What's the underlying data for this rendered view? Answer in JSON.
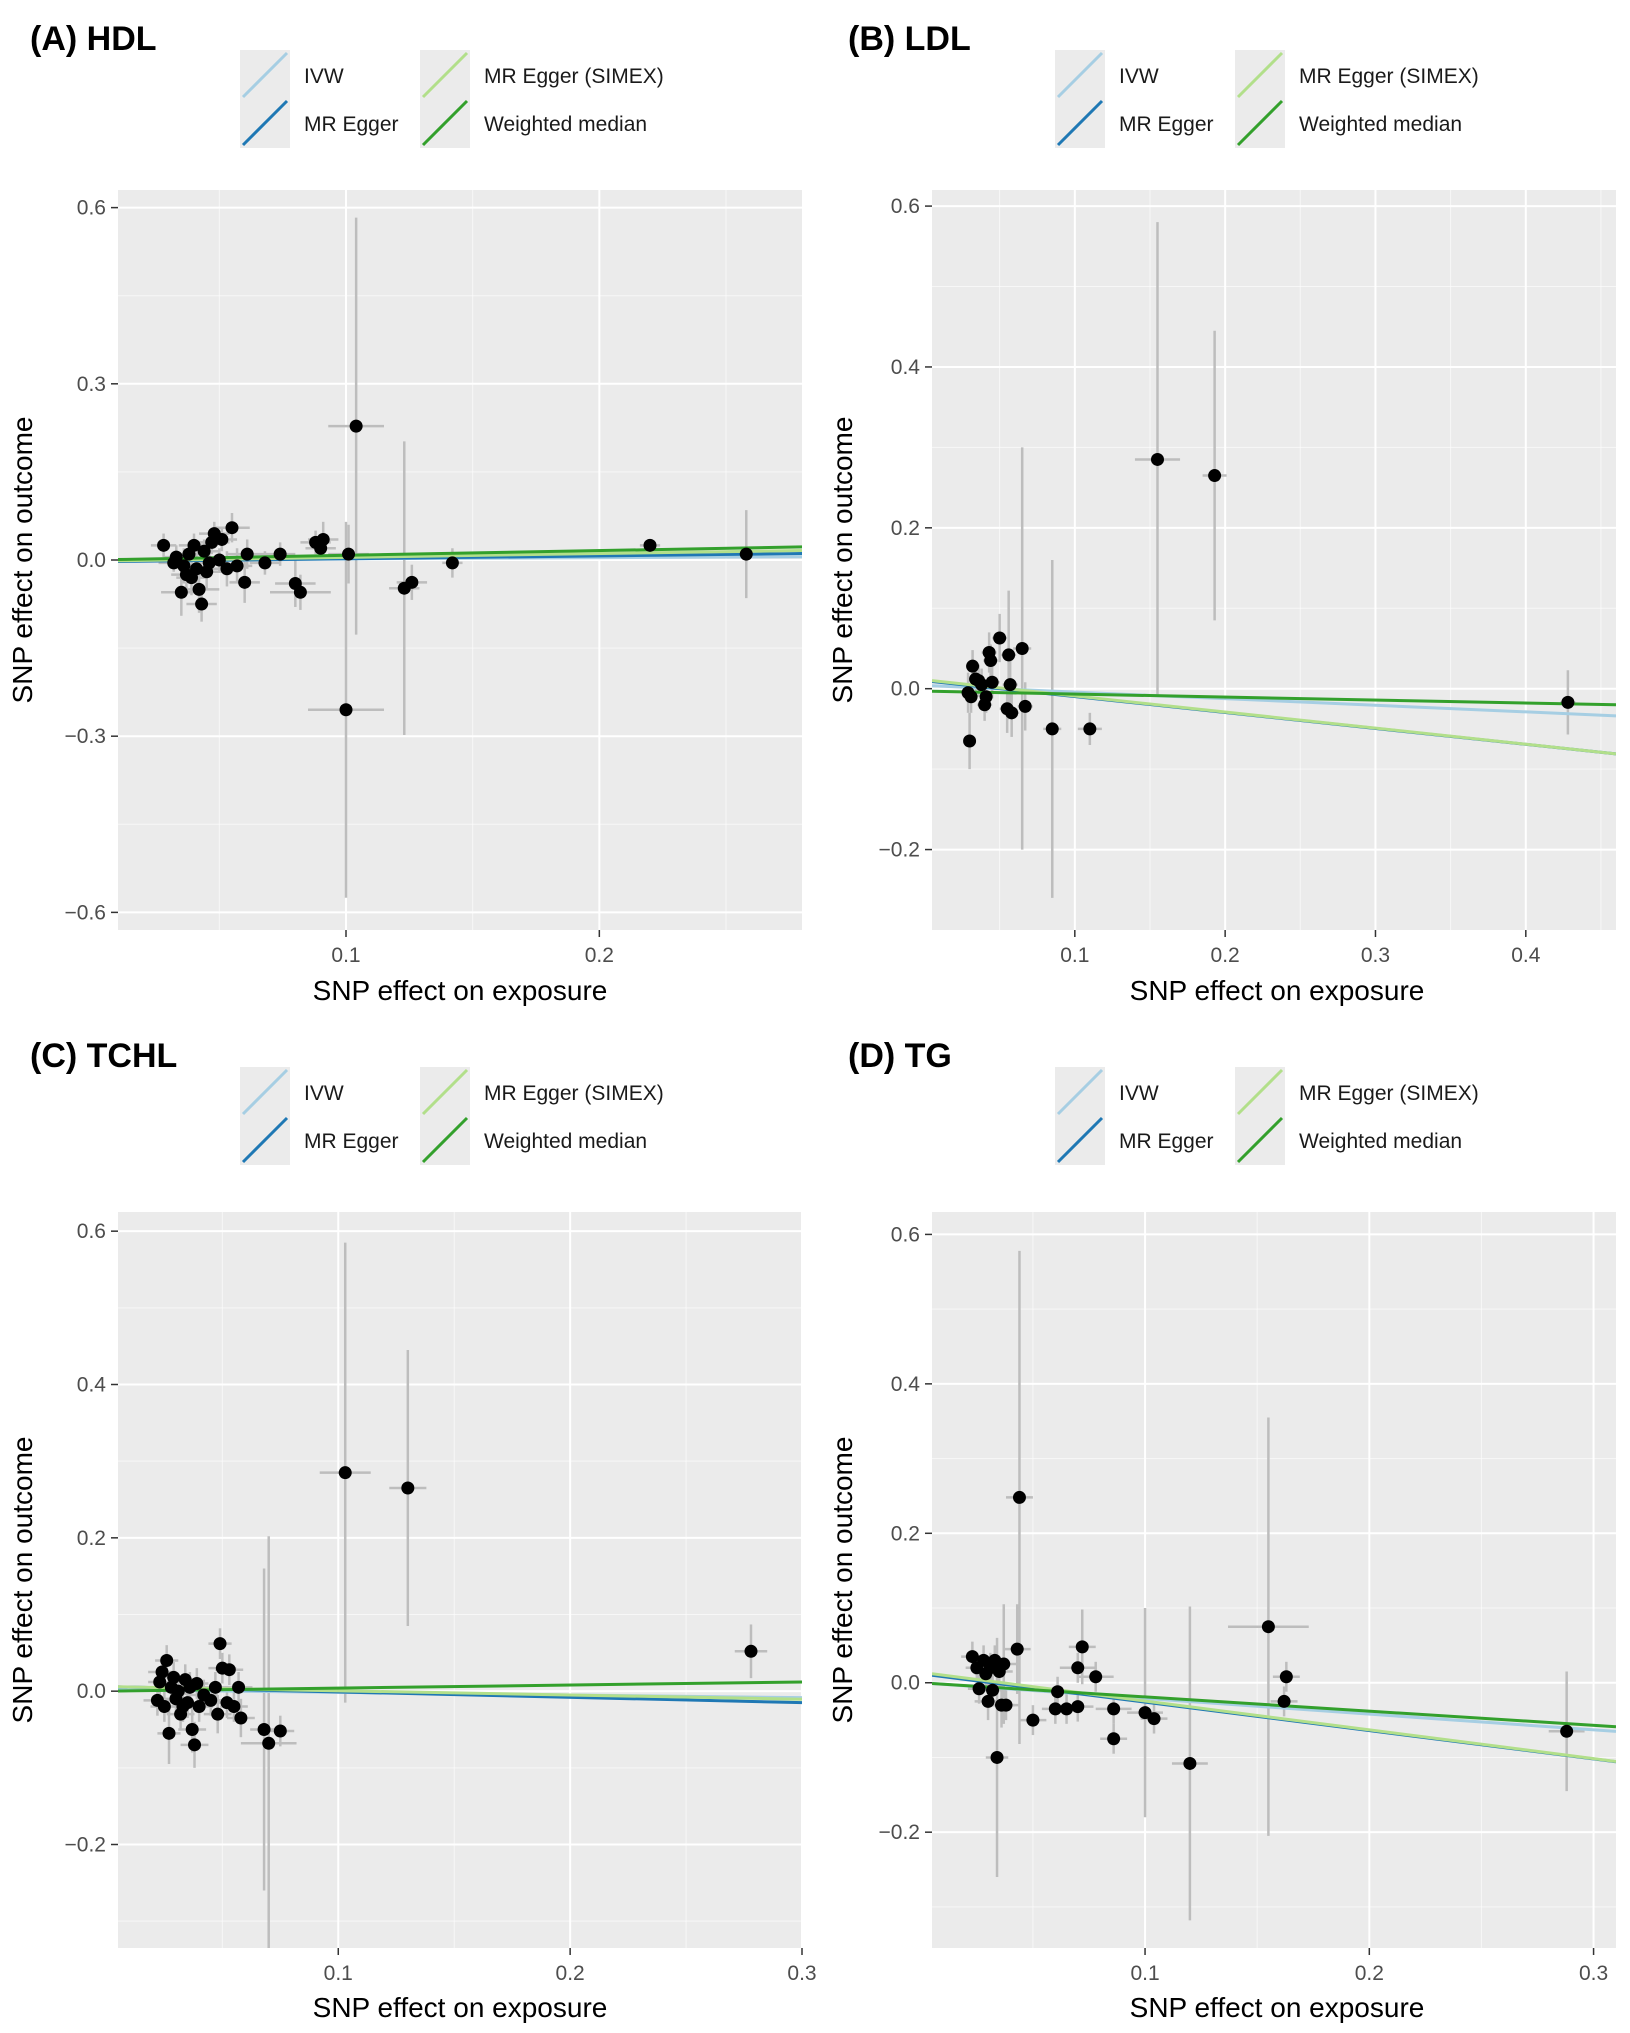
{
  "legend_entries": [
    {
      "name": "IVW",
      "color": "#a6cee3"
    },
    {
      "name": "MR Egger",
      "color": "#1f78b4"
    },
    {
      "name": "MR Egger (SIMEX)",
      "color": "#b2df8a"
    },
    {
      "name": "Weighted median",
      "color": "#33a02c"
    }
  ],
  "colors": {
    "panel_bg": "#ebebeb",
    "grid": "#ffffff",
    "errorbar": "#bdbdbd",
    "point": "#000000"
  },
  "chart_data": [
    {
      "type": "scatter",
      "title": "(A) HDL",
      "xlabel": "SNP effect on exposure",
      "ylabel": "SNP effect on outcome",
      "xlim": [
        0.01,
        0.28
      ],
      "ylim": [
        -0.63,
        0.63
      ],
      "xticks": [
        0.1,
        0.2
      ],
      "xtick_labels": [
        "0.1",
        "0.2"
      ],
      "yticks": [
        -0.6,
        -0.3,
        0.0,
        0.3,
        0.6
      ],
      "ytick_labels": [
        "−0.6",
        "−0.3",
        "0.0",
        "0.3",
        "0.6"
      ],
      "lines": [
        {
          "name": "IVW",
          "intercept": 0.0,
          "slope": 0.02
        },
        {
          "name": "MR Egger",
          "intercept": -0.003,
          "slope": 0.05
        },
        {
          "name": "MR Egger (SIMEX)",
          "intercept": -0.002,
          "slope": 0.065
        },
        {
          "name": "Weighted median",
          "intercept": 0.0,
          "slope": 0.08
        }
      ],
      "points": [
        {
          "x": 0.028,
          "y": 0.025,
          "xe": 0.005,
          "ye": 0.02
        },
        {
          "x": 0.032,
          "y": -0.005,
          "xe": 0.006,
          "ye": 0.015
        },
        {
          "x": 0.033,
          "y": 0.005,
          "xe": 0.005,
          "ye": 0.02
        },
        {
          "x": 0.035,
          "y": -0.055,
          "xe": 0.008,
          "ye": 0.04
        },
        {
          "x": 0.036,
          "y": -0.01,
          "xe": 0.005,
          "ye": 0.03
        },
        {
          "x": 0.037,
          "y": -0.025,
          "xe": 0.006,
          "ye": 0.025
        },
        {
          "x": 0.038,
          "y": 0.01,
          "xe": 0.005,
          "ye": 0.02
        },
        {
          "x": 0.039,
          "y": -0.03,
          "xe": 0.006,
          "ye": 0.03
        },
        {
          "x": 0.04,
          "y": 0.025,
          "xe": 0.006,
          "ye": 0.02
        },
        {
          "x": 0.041,
          "y": -0.015,
          "xe": 0.005,
          "ye": 0.025
        },
        {
          "x": 0.042,
          "y": -0.05,
          "xe": 0.008,
          "ye": 0.04
        },
        {
          "x": 0.043,
          "y": -0.075,
          "xe": 0.006,
          "ye": 0.03
        },
        {
          "x": 0.044,
          "y": 0.015,
          "xe": 0.006,
          "ye": 0.02
        },
        {
          "x": 0.045,
          "y": -0.02,
          "xe": 0.006,
          "ye": 0.03
        },
        {
          "x": 0.046,
          "y": -0.005,
          "xe": 0.005,
          "ye": 0.02
        },
        {
          "x": 0.047,
          "y": 0.03,
          "xe": 0.007,
          "ye": 0.02
        },
        {
          "x": 0.048,
          "y": 0.045,
          "xe": 0.006,
          "ye": 0.02
        },
        {
          "x": 0.05,
          "y": 0.0,
          "xe": 0.006,
          "ye": 0.02
        },
        {
          "x": 0.051,
          "y": 0.035,
          "xe": 0.006,
          "ye": 0.02
        },
        {
          "x": 0.053,
          "y": -0.015,
          "xe": 0.006,
          "ye": 0.03
        },
        {
          "x": 0.055,
          "y": 0.055,
          "xe": 0.007,
          "ye": 0.025
        },
        {
          "x": 0.057,
          "y": -0.01,
          "xe": 0.006,
          "ye": 0.03
        },
        {
          "x": 0.06,
          "y": -0.038,
          "xe": 0.006,
          "ye": 0.035
        },
        {
          "x": 0.061,
          "y": 0.01,
          "xe": 0.008,
          "ye": 0.025
        },
        {
          "x": 0.068,
          "y": -0.005,
          "xe": 0.006,
          "ye": 0.02
        },
        {
          "x": 0.074,
          "y": 0.01,
          "xe": 0.006,
          "ye": 0.02
        },
        {
          "x": 0.08,
          "y": -0.04,
          "xe": 0.008,
          "ye": 0.04
        },
        {
          "x": 0.082,
          "y": -0.055,
          "xe": 0.012,
          "ye": 0.03
        },
        {
          "x": 0.088,
          "y": 0.03,
          "xe": 0.006,
          "ye": 0.02
        },
        {
          "x": 0.09,
          "y": 0.02,
          "xe": 0.006,
          "ye": 0.02
        },
        {
          "x": 0.091,
          "y": 0.035,
          "xe": 0.006,
          "ye": 0.03
        },
        {
          "x": 0.101,
          "y": 0.01,
          "xe": 0.008,
          "ye": 0.05
        },
        {
          "x": 0.1,
          "y": -0.255,
          "xe": 0.015,
          "ye": 0.32
        },
        {
          "x": 0.104,
          "y": 0.228,
          "xe": 0.011,
          "ye": 0.355
        },
        {
          "x": 0.123,
          "y": -0.048,
          "xe": 0.006,
          "ye": 0.25
        },
        {
          "x": 0.126,
          "y": -0.038,
          "xe": 0.006,
          "ye": 0.03
        },
        {
          "x": 0.142,
          "y": -0.005,
          "xe": 0.004,
          "ye": 0.025
        },
        {
          "x": 0.22,
          "y": 0.025,
          "xe": 0.004,
          "ye": 0.01
        },
        {
          "x": 0.258,
          "y": 0.01,
          "xe": 0.005,
          "ye": 0.075
        }
      ]
    },
    {
      "type": "scatter",
      "title": "(B) LDL",
      "xlabel": "SNP effect on exposure",
      "ylabel": "SNP effect on outcome",
      "xlim": [
        0.005,
        0.46
      ],
      "ylim": [
        -0.3,
        0.62
      ],
      "xticks": [
        0.1,
        0.2,
        0.3,
        0.4
      ],
      "xtick_labels": [
        "0.1",
        "0.2",
        "0.3",
        "0.4"
      ],
      "yticks": [
        -0.2,
        0.0,
        0.2,
        0.4,
        0.6
      ],
      "ytick_labels": [
        "−0.2",
        "0.0",
        "0.2",
        "0.4",
        "0.6"
      ],
      "lines": [
        {
          "name": "IVW",
          "intercept": 0.004,
          "slope": -0.082
        },
        {
          "name": "MR Egger",
          "intercept": 0.01,
          "slope": -0.198
        },
        {
          "name": "MR Egger (SIMEX)",
          "intercept": 0.011,
          "slope": -0.2
        },
        {
          "name": "Weighted median",
          "intercept": -0.003,
          "slope": -0.037
        }
      ],
      "points": [
        {
          "x": 0.029,
          "y": -0.005,
          "xe": 0.004,
          "ye": 0.025
        },
        {
          "x": 0.03,
          "y": -0.065,
          "xe": 0.004,
          "ye": 0.035
        },
        {
          "x": 0.031,
          "y": -0.01,
          "xe": 0.004,
          "ye": 0.02
        },
        {
          "x": 0.032,
          "y": 0.028,
          "xe": 0.004,
          "ye": 0.02
        },
        {
          "x": 0.034,
          "y": 0.012,
          "xe": 0.005,
          "ye": 0.02
        },
        {
          "x": 0.036,
          "y": 0.01,
          "xe": 0.005,
          "ye": 0.02
        },
        {
          "x": 0.038,
          "y": 0.005,
          "xe": 0.004,
          "ye": 0.02
        },
        {
          "x": 0.04,
          "y": -0.02,
          "xe": 0.005,
          "ye": 0.02
        },
        {
          "x": 0.041,
          "y": -0.01,
          "xe": 0.004,
          "ye": 0.02
        },
        {
          "x": 0.043,
          "y": 0.045,
          "xe": 0.005,
          "ye": 0.025
        },
        {
          "x": 0.044,
          "y": 0.035,
          "xe": 0.005,
          "ye": 0.02
        },
        {
          "x": 0.045,
          "y": 0.008,
          "xe": 0.005,
          "ye": 0.02
        },
        {
          "x": 0.05,
          "y": 0.063,
          "xe": 0.005,
          "ye": 0.03
        },
        {
          "x": 0.055,
          "y": -0.025,
          "xe": 0.005,
          "ye": 0.03
        },
        {
          "x": 0.056,
          "y": 0.042,
          "xe": 0.005,
          "ye": 0.08
        },
        {
          "x": 0.057,
          "y": 0.005,
          "xe": 0.005,
          "ye": 0.03
        },
        {
          "x": 0.058,
          "y": -0.03,
          "xe": 0.005,
          "ye": 0.03
        },
        {
          "x": 0.065,
          "y": 0.05,
          "xe": 0.006,
          "ye": 0.25
        },
        {
          "x": 0.067,
          "y": -0.022,
          "xe": 0.005,
          "ye": 0.03
        },
        {
          "x": 0.085,
          "y": -0.05,
          "xe": 0.006,
          "ye": 0.21
        },
        {
          "x": 0.11,
          "y": -0.05,
          "xe": 0.008,
          "ye": 0.02
        },
        {
          "x": 0.155,
          "y": 0.285,
          "xe": 0.015,
          "ye": 0.295
        },
        {
          "x": 0.193,
          "y": 0.265,
          "xe": 0.008,
          "ye": 0.18
        },
        {
          "x": 0.428,
          "y": -0.017,
          "xe": 0.005,
          "ye": 0.04
        }
      ]
    },
    {
      "type": "scatter",
      "title": "(C) TCHL",
      "xlabel": "SNP effect on exposure",
      "ylabel": "SNP effect on outcome",
      "xlim": [
        0.005,
        0.3
      ],
      "ylim": [
        -0.335,
        0.625
      ],
      "xticks": [
        0.1,
        0.2,
        0.3
      ],
      "xtick_labels": [
        "0.1",
        "0.2",
        "0.3"
      ],
      "yticks": [
        -0.2,
        0.0,
        0.2,
        0.4,
        0.6
      ],
      "ytick_labels": [
        "−0.2",
        "0.0",
        "0.2",
        "0.4",
        "0.6"
      ],
      "lines": [
        {
          "name": "IVW",
          "intercept": 0.002,
          "slope": -0.035
        },
        {
          "name": "MR Egger",
          "intercept": 0.006,
          "slope": -0.07
        },
        {
          "name": "MR Egger (SIMEX)",
          "intercept": 0.006,
          "slope": -0.055
        },
        {
          "name": "Weighted median",
          "intercept": 0.0,
          "slope": 0.04
        }
      ],
      "points": [
        {
          "x": 0.022,
          "y": -0.012,
          "xe": 0.006,
          "ye": 0.02
        },
        {
          "x": 0.023,
          "y": 0.012,
          "xe": 0.005,
          "ye": 0.02
        },
        {
          "x": 0.024,
          "y": 0.025,
          "xe": 0.006,
          "ye": 0.02
        },
        {
          "x": 0.025,
          "y": -0.02,
          "xe": 0.006,
          "ye": 0.02
        },
        {
          "x": 0.026,
          "y": 0.04,
          "xe": 0.005,
          "ye": 0.02
        },
        {
          "x": 0.027,
          "y": -0.055,
          "xe": 0.005,
          "ye": 0.04
        },
        {
          "x": 0.028,
          "y": 0.005,
          "xe": 0.005,
          "ye": 0.02
        },
        {
          "x": 0.029,
          "y": 0.018,
          "xe": 0.006,
          "ye": 0.02
        },
        {
          "x": 0.03,
          "y": -0.01,
          "xe": 0.006,
          "ye": 0.02
        },
        {
          "x": 0.031,
          "y": 0.0,
          "xe": 0.006,
          "ye": 0.02
        },
        {
          "x": 0.032,
          "y": -0.03,
          "xe": 0.006,
          "ye": 0.02
        },
        {
          "x": 0.033,
          "y": -0.02,
          "xe": 0.006,
          "ye": 0.02
        },
        {
          "x": 0.034,
          "y": 0.015,
          "xe": 0.006,
          "ye": 0.02
        },
        {
          "x": 0.035,
          "y": -0.015,
          "xe": 0.006,
          "ye": 0.02
        },
        {
          "x": 0.036,
          "y": 0.005,
          "xe": 0.006,
          "ye": 0.02
        },
        {
          "x": 0.037,
          "y": -0.05,
          "xe": 0.006,
          "ye": 0.03
        },
        {
          "x": 0.038,
          "y": -0.07,
          "xe": 0.006,
          "ye": 0.03
        },
        {
          "x": 0.039,
          "y": 0.01,
          "xe": 0.005,
          "ye": 0.02
        },
        {
          "x": 0.04,
          "y": -0.02,
          "xe": 0.006,
          "ye": 0.02
        },
        {
          "x": 0.042,
          "y": -0.005,
          "xe": 0.006,
          "ye": 0.02
        },
        {
          "x": 0.045,
          "y": -0.012,
          "xe": 0.006,
          "ye": 0.02
        },
        {
          "x": 0.047,
          "y": 0.005,
          "xe": 0.006,
          "ye": 0.02
        },
        {
          "x": 0.048,
          "y": -0.03,
          "xe": 0.006,
          "ye": 0.025
        },
        {
          "x": 0.049,
          "y": 0.062,
          "xe": 0.005,
          "ye": 0.02
        },
        {
          "x": 0.05,
          "y": 0.03,
          "xe": 0.006,
          "ye": 0.02
        },
        {
          "x": 0.052,
          "y": -0.015,
          "xe": 0.006,
          "ye": 0.02
        },
        {
          "x": 0.053,
          "y": 0.028,
          "xe": 0.006,
          "ye": 0.02
        },
        {
          "x": 0.055,
          "y": -0.02,
          "xe": 0.006,
          "ye": 0.02
        },
        {
          "x": 0.057,
          "y": 0.005,
          "xe": 0.006,
          "ye": 0.02
        },
        {
          "x": 0.058,
          "y": -0.035,
          "xe": 0.006,
          "ye": 0.025
        },
        {
          "x": 0.068,
          "y": -0.05,
          "xe": 0.006,
          "ye": 0.21
        },
        {
          "x": 0.07,
          "y": -0.068,
          "xe": 0.012,
          "ye": 0.27
        },
        {
          "x": 0.075,
          "y": -0.052,
          "xe": 0.006,
          "ye": 0.02
        },
        {
          "x": 0.103,
          "y": 0.285,
          "xe": 0.011,
          "ye": 0.3
        },
        {
          "x": 0.13,
          "y": 0.265,
          "xe": 0.008,
          "ye": 0.18
        },
        {
          "x": 0.278,
          "y": 0.052,
          "xe": 0.007,
          "ye": 0.035
        }
      ]
    },
    {
      "type": "scatter",
      "title": "(D) TG",
      "xlabel": "SNP effect on exposure",
      "ylabel": "SNP effect on outcome",
      "xlim": [
        0.005,
        0.31
      ],
      "ylim": [
        -0.355,
        0.63
      ],
      "xticks": [
        0.1,
        0.2,
        0.3
      ],
      "xtick_labels": [
        "0.1",
        "0.2",
        "0.3"
      ],
      "yticks": [
        -0.2,
        0.0,
        0.2,
        0.4,
        0.6
      ],
      "ytick_labels": [
        "−0.2",
        "0.0",
        "0.2",
        "0.4",
        "0.6"
      ],
      "lines": [
        {
          "name": "IVW",
          "intercept": 0.0,
          "slope": -0.21
        },
        {
          "name": "MR Egger",
          "intercept": 0.012,
          "slope": -0.38
        },
        {
          "name": "MR Egger (SIMEX)",
          "intercept": 0.014,
          "slope": -0.385
        },
        {
          "name": "Weighted median",
          "intercept": 0.0,
          "slope": -0.19
        }
      ],
      "points": [
        {
          "x": 0.023,
          "y": 0.035,
          "xe": 0.005,
          "ye": 0.02
        },
        {
          "x": 0.025,
          "y": 0.02,
          "xe": 0.005,
          "ye": 0.02
        },
        {
          "x": 0.026,
          "y": -0.008,
          "xe": 0.005,
          "ye": 0.02
        },
        {
          "x": 0.028,
          "y": 0.03,
          "xe": 0.005,
          "ye": 0.02
        },
        {
          "x": 0.029,
          "y": 0.012,
          "xe": 0.005,
          "ye": 0.02
        },
        {
          "x": 0.03,
          "y": -0.025,
          "xe": 0.006,
          "ye": 0.025
        },
        {
          "x": 0.031,
          "y": 0.02,
          "xe": 0.006,
          "ye": 0.02
        },
        {
          "x": 0.032,
          "y": -0.01,
          "xe": 0.006,
          "ye": 0.02
        },
        {
          "x": 0.033,
          "y": 0.03,
          "xe": 0.006,
          "ye": 0.02
        },
        {
          "x": 0.034,
          "y": -0.1,
          "xe": 0.005,
          "ye": 0.16
        },
        {
          "x": 0.035,
          "y": 0.015,
          "xe": 0.006,
          "ye": 0.02
        },
        {
          "x": 0.036,
          "y": -0.03,
          "xe": 0.006,
          "ye": 0.03
        },
        {
          "x": 0.037,
          "y": 0.025,
          "xe": 0.006,
          "ye": 0.08
        },
        {
          "x": 0.038,
          "y": -0.03,
          "xe": 0.006,
          "ye": 0.02
        },
        {
          "x": 0.043,
          "y": 0.045,
          "xe": 0.006,
          "ye": 0.06
        },
        {
          "x": 0.044,
          "y": 0.248,
          "xe": 0.006,
          "ye": 0.33
        },
        {
          "x": 0.05,
          "y": -0.05,
          "xe": 0.006,
          "ye": 0.02
        },
        {
          "x": 0.06,
          "y": -0.035,
          "xe": 0.006,
          "ye": 0.02
        },
        {
          "x": 0.061,
          "y": -0.012,
          "xe": 0.006,
          "ye": 0.02
        },
        {
          "x": 0.065,
          "y": -0.035,
          "xe": 0.006,
          "ye": 0.02
        },
        {
          "x": 0.07,
          "y": 0.02,
          "xe": 0.008,
          "ye": 0.02
        },
        {
          "x": 0.07,
          "y": -0.032,
          "xe": 0.007,
          "ye": 0.02
        },
        {
          "x": 0.072,
          "y": 0.048,
          "xe": 0.006,
          "ye": 0.05
        },
        {
          "x": 0.078,
          "y": 0.008,
          "xe": 0.008,
          "ye": 0.02
        },
        {
          "x": 0.086,
          "y": -0.035,
          "xe": 0.008,
          "ye": 0.02
        },
        {
          "x": 0.086,
          "y": -0.075,
          "xe": 0.006,
          "ye": 0.02
        },
        {
          "x": 0.1,
          "y": -0.04,
          "xe": 0.008,
          "ye": 0.14
        },
        {
          "x": 0.104,
          "y": -0.048,
          "xe": 0.006,
          "ye": 0.02
        },
        {
          "x": 0.12,
          "y": -0.108,
          "xe": 0.008,
          "ye": 0.21
        },
        {
          "x": 0.155,
          "y": 0.075,
          "xe": 0.018,
          "ye": 0.28
        },
        {
          "x": 0.163,
          "y": 0.008,
          "xe": 0.006,
          "ye": 0.02
        },
        {
          "x": 0.162,
          "y": -0.025,
          "xe": 0.006,
          "ye": 0.02
        },
        {
          "x": 0.288,
          "y": -0.065,
          "xe": 0.008,
          "ye": 0.08
        }
      ]
    }
  ]
}
